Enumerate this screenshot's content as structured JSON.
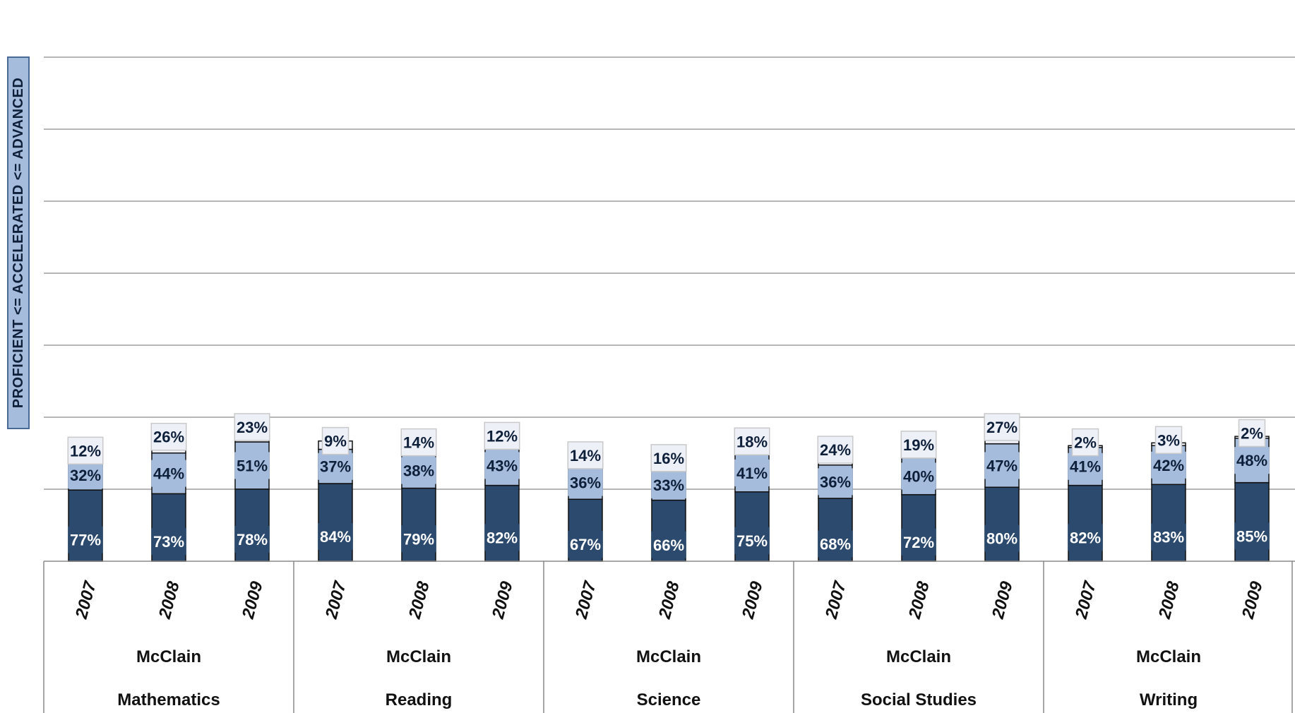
{
  "chart_data": {
    "type": "bar",
    "stacked": true,
    "ylabel": "PROFICIENT <= ACCELERATED <= ADVANCED",
    "groups": [
      {
        "line1": "McClain",
        "line2": "Mathematics",
        "years": [
          "2007",
          "2008",
          "2009"
        ]
      },
      {
        "line1": "McClain",
        "line2": "Reading",
        "years": [
          "2007",
          "2008",
          "2009"
        ]
      },
      {
        "line1": "McClain",
        "line2": "Science",
        "years": [
          "2007",
          "2008",
          "2009"
        ]
      },
      {
        "line1": "McClain",
        "line2": "Social Studies",
        "years": [
          "2007",
          "2008",
          "2009"
        ]
      },
      {
        "line1": "McClain",
        "line2": "Writing",
        "years": [
          "2007",
          "2008",
          "2009"
        ]
      }
    ],
    "series": [
      {
        "values": [
          77,
          73,
          78,
          84,
          79,
          82,
          67,
          66,
          75,
          68,
          72,
          80,
          82,
          83,
          85
        ],
        "color": "#2c4a6e"
      },
      {
        "values": [
          32,
          44,
          51,
          37,
          38,
          43,
          36,
          33,
          41,
          36,
          40,
          47,
          41,
          42,
          48
        ],
        "color": "#a6bcdc"
      },
      {
        "values": [
          12,
          26,
          23,
          9,
          14,
          12,
          14,
          16,
          18,
          24,
          19,
          27,
          2,
          3,
          2
        ],
        "color": "#edf1f7"
      }
    ],
    "value_suffix": "%",
    "ylim": [
      0,
      155
    ],
    "grid": true,
    "legend": "none"
  }
}
